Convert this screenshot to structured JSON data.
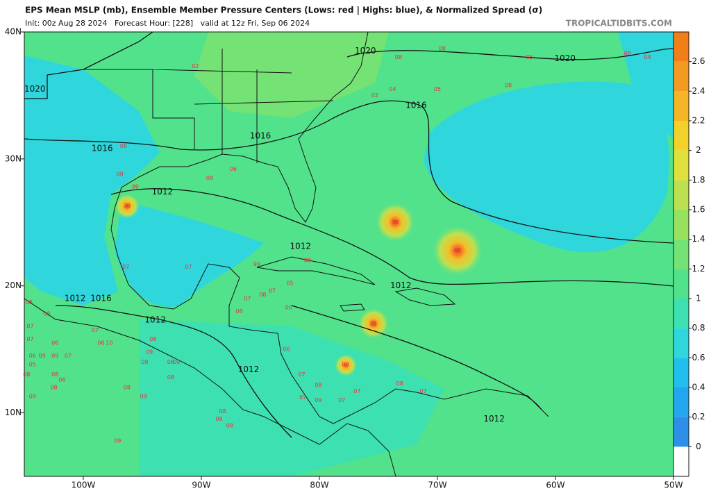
{
  "header": {
    "title": "EPS Mean MSLP (mb), Ensemble Member Pressure Centers (Lows: red | Highs: blue), & Normalized Spread (σ)",
    "subtitle": "Init: 00z Aug 28 2024   Forecast Hour: [228]   valid at 12z Fri, Sep 06 2024",
    "brand": "TROPICALTIDBITS.COM"
  },
  "map": {
    "lon_range": [
      -105,
      -50
    ],
    "lat_range": [
      5,
      40
    ],
    "lon_ticks": [
      {
        "value": -100,
        "label": "100W"
      },
      {
        "value": -90,
        "label": "90W"
      },
      {
        "value": -80,
        "label": "80W"
      },
      {
        "value": -70,
        "label": "70W"
      },
      {
        "value": -60,
        "label": "60W"
      },
      {
        "value": -50,
        "label": "50W"
      }
    ],
    "lat_ticks": [
      {
        "value": 10,
        "label": "10N"
      },
      {
        "value": 20,
        "label": "20N"
      },
      {
        "value": 30,
        "label": "30N"
      },
      {
        "value": 40,
        "label": "40N"
      }
    ],
    "low_color": "#e8303c",
    "isobar_color": "#111111",
    "isobar_labels": [
      {
        "lon": -104.1,
        "lat": 35.5,
        "label": "1020"
      },
      {
        "lon": -76.1,
        "lat": 38.5,
        "label": "1020"
      },
      {
        "lon": -59.2,
        "lat": 37.9,
        "label": "1020"
      },
      {
        "lon": -98.4,
        "lat": 30.8,
        "label": "1016"
      },
      {
        "lon": -85.0,
        "lat": 31.8,
        "label": "1016"
      },
      {
        "lon": -71.8,
        "lat": 34.2,
        "label": "1016"
      },
      {
        "lon": -93.3,
        "lat": 27.4,
        "label": "1012"
      },
      {
        "lon": -81.6,
        "lat": 23.1,
        "label": "1012"
      },
      {
        "lon": -73.1,
        "lat": 20.0,
        "label": "1012"
      },
      {
        "lon": -100.7,
        "lat": 19.0,
        "label": "1012"
      },
      {
        "lon": -98.5,
        "lat": 19.0,
        "label": "1016"
      },
      {
        "lon": -93.9,
        "lat": 17.3,
        "label": "1012"
      },
      {
        "lon": -86.0,
        "lat": 13.4,
        "label": "1012"
      },
      {
        "lon": -65.2,
        "lat": 9.5,
        "label": "1012"
      }
    ],
    "pressure_centers": [
      {
        "lon": -90.5,
        "lat": 37.3,
        "label": "02"
      },
      {
        "lon": -73.3,
        "lat": 38.0,
        "label": "08"
      },
      {
        "lon": -69.6,
        "lat": 38.7,
        "label": "08"
      },
      {
        "lon": -62.2,
        "lat": 38.0,
        "label": "05"
      },
      {
        "lon": -53.9,
        "lat": 38.3,
        "label": "08"
      },
      {
        "lon": -52.2,
        "lat": 38.0,
        "label": "04"
      },
      {
        "lon": -75.3,
        "lat": 35.0,
        "label": "02"
      },
      {
        "lon": -73.8,
        "lat": 35.5,
        "label": "04"
      },
      {
        "lon": -70.0,
        "lat": 35.5,
        "label": "05"
      },
      {
        "lon": -64.0,
        "lat": 35.8,
        "label": "08"
      },
      {
        "lon": -96.6,
        "lat": 31.0,
        "label": "06"
      },
      {
        "lon": -87.3,
        "lat": 29.2,
        "label": "06"
      },
      {
        "lon": -89.3,
        "lat": 28.5,
        "label": "08"
      },
      {
        "lon": -96.9,
        "lat": 28.8,
        "label": "08"
      },
      {
        "lon": -95.6,
        "lat": 27.8,
        "label": "99"
      },
      {
        "lon": -96.3,
        "lat": 26.3,
        "label": "79"
      },
      {
        "lon": -73.6,
        "lat": 25.0,
        "label": "78"
      },
      {
        "lon": -68.3,
        "lat": 22.8,
        "label": "65"
      },
      {
        "lon": -96.4,
        "lat": 21.5,
        "label": "07"
      },
      {
        "lon": -91.1,
        "lat": 21.5,
        "label": "07"
      },
      {
        "lon": -85.3,
        "lat": 21.7,
        "label": "99"
      },
      {
        "lon": -81.0,
        "lat": 22.0,
        "label": "08"
      },
      {
        "lon": -82.5,
        "lat": 20.2,
        "label": "05"
      },
      {
        "lon": -86.1,
        "lat": 19.0,
        "label": "07"
      },
      {
        "lon": -84.8,
        "lat": 19.3,
        "label": "08"
      },
      {
        "lon": -84.0,
        "lat": 19.6,
        "label": "07"
      },
      {
        "lon": -82.6,
        "lat": 18.3,
        "label": "00"
      },
      {
        "lon": -86.8,
        "lat": 18.0,
        "label": "08"
      },
      {
        "lon": -75.4,
        "lat": 17.0,
        "label": "01"
      },
      {
        "lon": -82.8,
        "lat": 15.0,
        "label": "06"
      },
      {
        "lon": -77.8,
        "lat": 13.8,
        "label": "00"
      },
      {
        "lon": -81.5,
        "lat": 13.0,
        "label": "07"
      },
      {
        "lon": -80.1,
        "lat": 12.2,
        "label": "08"
      },
      {
        "lon": -81.4,
        "lat": 11.2,
        "label": "07"
      },
      {
        "lon": -80.1,
        "lat": 11.0,
        "label": "09"
      },
      {
        "lon": -78.1,
        "lat": 11.0,
        "label": "07"
      },
      {
        "lon": -76.8,
        "lat": 11.7,
        "label": "07"
      },
      {
        "lon": -73.2,
        "lat": 12.3,
        "label": "08"
      },
      {
        "lon": -71.2,
        "lat": 11.7,
        "label": "07"
      },
      {
        "lon": -104.5,
        "lat": 16.8,
        "label": "07"
      },
      {
        "lon": -104.5,
        "lat": 15.8,
        "label": "07"
      },
      {
        "lon": -102.4,
        "lat": 15.5,
        "label": "06"
      },
      {
        "lon": -103.5,
        "lat": 14.5,
        "label": "09"
      },
      {
        "lon": -104.3,
        "lat": 14.5,
        "label": "06"
      },
      {
        "lon": -104.3,
        "lat": 13.8,
        "label": "05"
      },
      {
        "lon": -102.4,
        "lat": 14.5,
        "label": "09"
      },
      {
        "lon": -101.3,
        "lat": 14.5,
        "label": "07"
      },
      {
        "lon": -102.4,
        "lat": 13.0,
        "label": "08"
      },
      {
        "lon": -101.8,
        "lat": 12.6,
        "label": "06"
      },
      {
        "lon": -102.5,
        "lat": 12.0,
        "label": "08"
      },
      {
        "lon": -104.3,
        "lat": 11.3,
        "label": "09"
      },
      {
        "lon": -104.8,
        "lat": 13.0,
        "label": "08"
      },
      {
        "lon": -98.5,
        "lat": 15.5,
        "label": "06"
      },
      {
        "lon": -97.8,
        "lat": 15.5,
        "label": "10"
      },
      {
        "lon": -94.4,
        "lat": 14.8,
        "label": "09"
      },
      {
        "lon": -94.8,
        "lat": 14.0,
        "label": "09"
      },
      {
        "lon": -94.1,
        "lat": 15.8,
        "label": "08"
      },
      {
        "lon": -92.6,
        "lat": 14.0,
        "label": "08"
      },
      {
        "lon": -92.1,
        "lat": 14.0,
        "label": "09"
      },
      {
        "lon": -92.6,
        "lat": 12.8,
        "label": "08"
      },
      {
        "lon": -96.3,
        "lat": 12.0,
        "label": "08"
      },
      {
        "lon": -94.9,
        "lat": 11.3,
        "label": "09"
      },
      {
        "lon": -88.2,
        "lat": 10.1,
        "label": "08"
      },
      {
        "lon": -88.5,
        "lat": 9.5,
        "label": "08"
      },
      {
        "lon": -87.6,
        "lat": 9.0,
        "label": "08"
      },
      {
        "lon": -97.1,
        "lat": 7.8,
        "label": "09"
      },
      {
        "lon": -99.0,
        "lat": 16.5,
        "label": "07"
      },
      {
        "lon": -103.1,
        "lat": 17.8,
        "label": "08"
      },
      {
        "lon": -104.6,
        "lat": 18.7,
        "label": "08"
      }
    ]
  },
  "colorbar": {
    "range": [
      -0.2,
      2.8
    ],
    "bounds": [
      -0.2,
      0,
      0.2,
      0.4,
      0.6,
      0.8,
      1,
      1.2,
      1.4,
      1.6,
      1.8,
      2,
      2.2,
      2.4,
      2.6,
      2.8
    ],
    "colors": [
      "#ffffff",
      "#2e8fe8",
      "#24a6ee",
      "#22bfee",
      "#2fd6dc",
      "#3de0b0",
      "#52e28c",
      "#74e274",
      "#98e060",
      "#bde050",
      "#dfe03e",
      "#f2d22a",
      "#f4b626",
      "#f49a22",
      "#f27e1a"
    ],
    "ticks": [
      0,
      0.2,
      0.4,
      0.6,
      0.8,
      1,
      1.2,
      1.4,
      1.6,
      1.8,
      2,
      2.2,
      2.4,
      2.6
    ]
  }
}
